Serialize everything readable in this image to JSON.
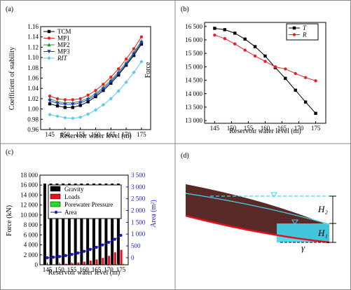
{
  "chart_data": [
    {
      "type": "line",
      "panel_label": "(a)",
      "x_label": "Reservoir water level (m)",
      "y_label": "Coefficient of stability",
      "x": [
        145,
        147.5,
        150,
        152.5,
        155,
        157.5,
        160,
        162.5,
        165,
        167.5,
        170,
        172.5,
        175
      ],
      "xlim": [
        142,
        178
      ],
      "xticks": [
        145,
        150,
        155,
        160,
        165,
        170,
        175
      ],
      "ylim": [
        0.96,
        1.16
      ],
      "yticks": [
        0.96,
        0.98,
        {
          "value": 1,
          "label": "1.00"
        },
        1.02,
        1.04,
        1.06,
        1.08,
        {
          "value": 1.1,
          "label": "1.10"
        },
        1.12,
        1.14,
        1.16
      ],
      "legend": "upper left",
      "series": [
        {
          "name": "TCM",
          "color": "#000000",
          "marker": "square",
          "values": [
            1.01,
            1.006,
            1.003,
            1.003,
            1.007,
            1.014,
            1.024,
            1.036,
            1.05,
            1.066,
            1.085,
            1.104,
            1.126
          ]
        },
        {
          "name": "MP1",
          "color": "#e8202a",
          "marker": "circle",
          "values": [
            1.025,
            1.02,
            1.018,
            1.018,
            1.02,
            1.027,
            1.036,
            1.048,
            1.062,
            1.078,
            1.097,
            1.117,
            1.14
          ]
        },
        {
          "name": "MP2",
          "color": "#1a9a3a",
          "marker": "triangle",
          "values": [
            1.02,
            1.014,
            1.012,
            1.012,
            1.015,
            1.021,
            1.03,
            1.042,
            1.056,
            1.072,
            1.09,
            1.11,
            1.132
          ]
        },
        {
          "name": "MP3",
          "color": "#2233cc",
          "marker": "triangle-down",
          "values": [
            1.016,
            1.011,
            1.009,
            1.009,
            1.012,
            1.018,
            1.027,
            1.039,
            1.053,
            1.069,
            1.087,
            1.107,
            1.129
          ]
        },
        {
          "name": "RIT",
          "color": "#5ec8f0",
          "marker": "diamond",
          "values": [
            0.989,
            0.986,
            0.983,
            0.982,
            0.984,
            0.99,
            0.998,
            1.008,
            1.02,
            1.035,
            1.052,
            1.071,
            1.092
          ]
        }
      ]
    },
    {
      "type": "line",
      "panel_label": "(b)",
      "x_label": "Reservoir water level (m)",
      "y_label": "Force",
      "x": [
        145,
        148,
        151,
        154,
        157,
        160,
        163,
        166,
        169,
        172,
        175
      ],
      "xlim": [
        142,
        178
      ],
      "xticks": [
        145,
        150,
        155,
        160,
        165,
        170,
        175
      ],
      "ylim": [
        12900,
        16650
      ],
      "yticks": [
        {
          "value": 13000,
          "label": "13 000"
        },
        {
          "value": 13500,
          "label": "13 500"
        },
        {
          "value": 14000,
          "label": "14 000"
        },
        {
          "value": 14500,
          "label": "14 500"
        },
        {
          "value": 15000,
          "label": "15 000"
        },
        {
          "value": 15500,
          "label": "15 500"
        },
        {
          "value": 16000,
          "label": "16 000"
        },
        {
          "value": 16500,
          "label": "16 500"
        }
      ],
      "legend": "upper right",
      "series": [
        {
          "name": "T",
          "color": "#000000",
          "marker": "square",
          "values": [
            16430,
            16380,
            16250,
            16030,
            15750,
            15400,
            14970,
            14570,
            14130,
            13690,
            13270
          ]
        },
        {
          "name": "R",
          "color": "#e8202a",
          "marker": "circle",
          "values": [
            16180,
            16050,
            15850,
            15620,
            15400,
            15200,
            15000,
            14920,
            14750,
            14600,
            14480
          ]
        }
      ]
    },
    {
      "type": "bar",
      "panel_label": "(c)",
      "x_label": "Reservoir water level (m)",
      "y_label": "Force (kN)",
      "y2_label": "Area (m²)",
      "x": [
        145,
        147.5,
        150,
        152.5,
        155,
        157.5,
        160,
        162.5,
        165,
        167.5,
        170,
        172.5,
        175
      ],
      "xlim": [
        142,
        178
      ],
      "xticks": [
        145,
        150,
        155,
        160,
        165,
        170,
        175
      ],
      "ylim": [
        0,
        18000
      ],
      "yticks": [
        0,
        {
          "value": 2000,
          "label": "2 000"
        },
        {
          "value": 4000,
          "label": "4 000"
        },
        {
          "value": 6000,
          "label": "6 000"
        },
        {
          "value": 8000,
          "label": "8 000"
        },
        {
          "value": 10000,
          "label": "10 000"
        },
        {
          "value": 12000,
          "label": "12 000"
        },
        {
          "value": 14000,
          "label": "14 000"
        },
        {
          "value": 16000,
          "label": "16 000"
        },
        {
          "value": 18000,
          "label": "18 000"
        }
      ],
      "y2lim": [
        -300,
        3500
      ],
      "y2ticks": [
        0,
        500,
        {
          "value": 1000,
          "label": "1 000"
        },
        {
          "value": 1500,
          "label": "1 500"
        },
        {
          "value": 2000,
          "label": "2 000"
        },
        {
          "value": 2500,
          "label": "2 500"
        },
        {
          "value": 3000,
          "label": "3 000"
        },
        {
          "value": 3500,
          "label": "3 500"
        }
      ],
      "legend": "upper center",
      "series": [
        {
          "name": "Gravity",
          "color": "#000000",
          "values": [
            16300,
            16300,
            16300,
            16300,
            16300,
            16300,
            16300,
            16300,
            16300,
            16300,
            16300,
            16300,
            16300
          ]
        },
        {
          "name": "Loads",
          "color": "#e8101a",
          "values": [
            20,
            60,
            120,
            200,
            300,
            450,
            620,
            830,
            1080,
            1380,
            1800,
            2500,
            3000
          ]
        },
        {
          "name": "Porewater Pressure",
          "color": "#22dd22",
          "values": [
            0,
            0,
            0,
            0,
            10,
            20,
            40,
            60,
            90,
            120,
            160,
            200,
            250
          ]
        },
        {
          "name": "Area",
          "color": "#1a1acc",
          "type": "line",
          "axis": "y2",
          "marker": "circle",
          "values": [
            0,
            20,
            50,
            90,
            140,
            200,
            270,
            350,
            440,
            540,
            650,
            780,
            950
          ]
        }
      ]
    }
  ],
  "diagram": {
    "panel_label": "(d)",
    "upper_height": "H₂",
    "lower_height": "H₁",
    "angle": "γ"
  }
}
